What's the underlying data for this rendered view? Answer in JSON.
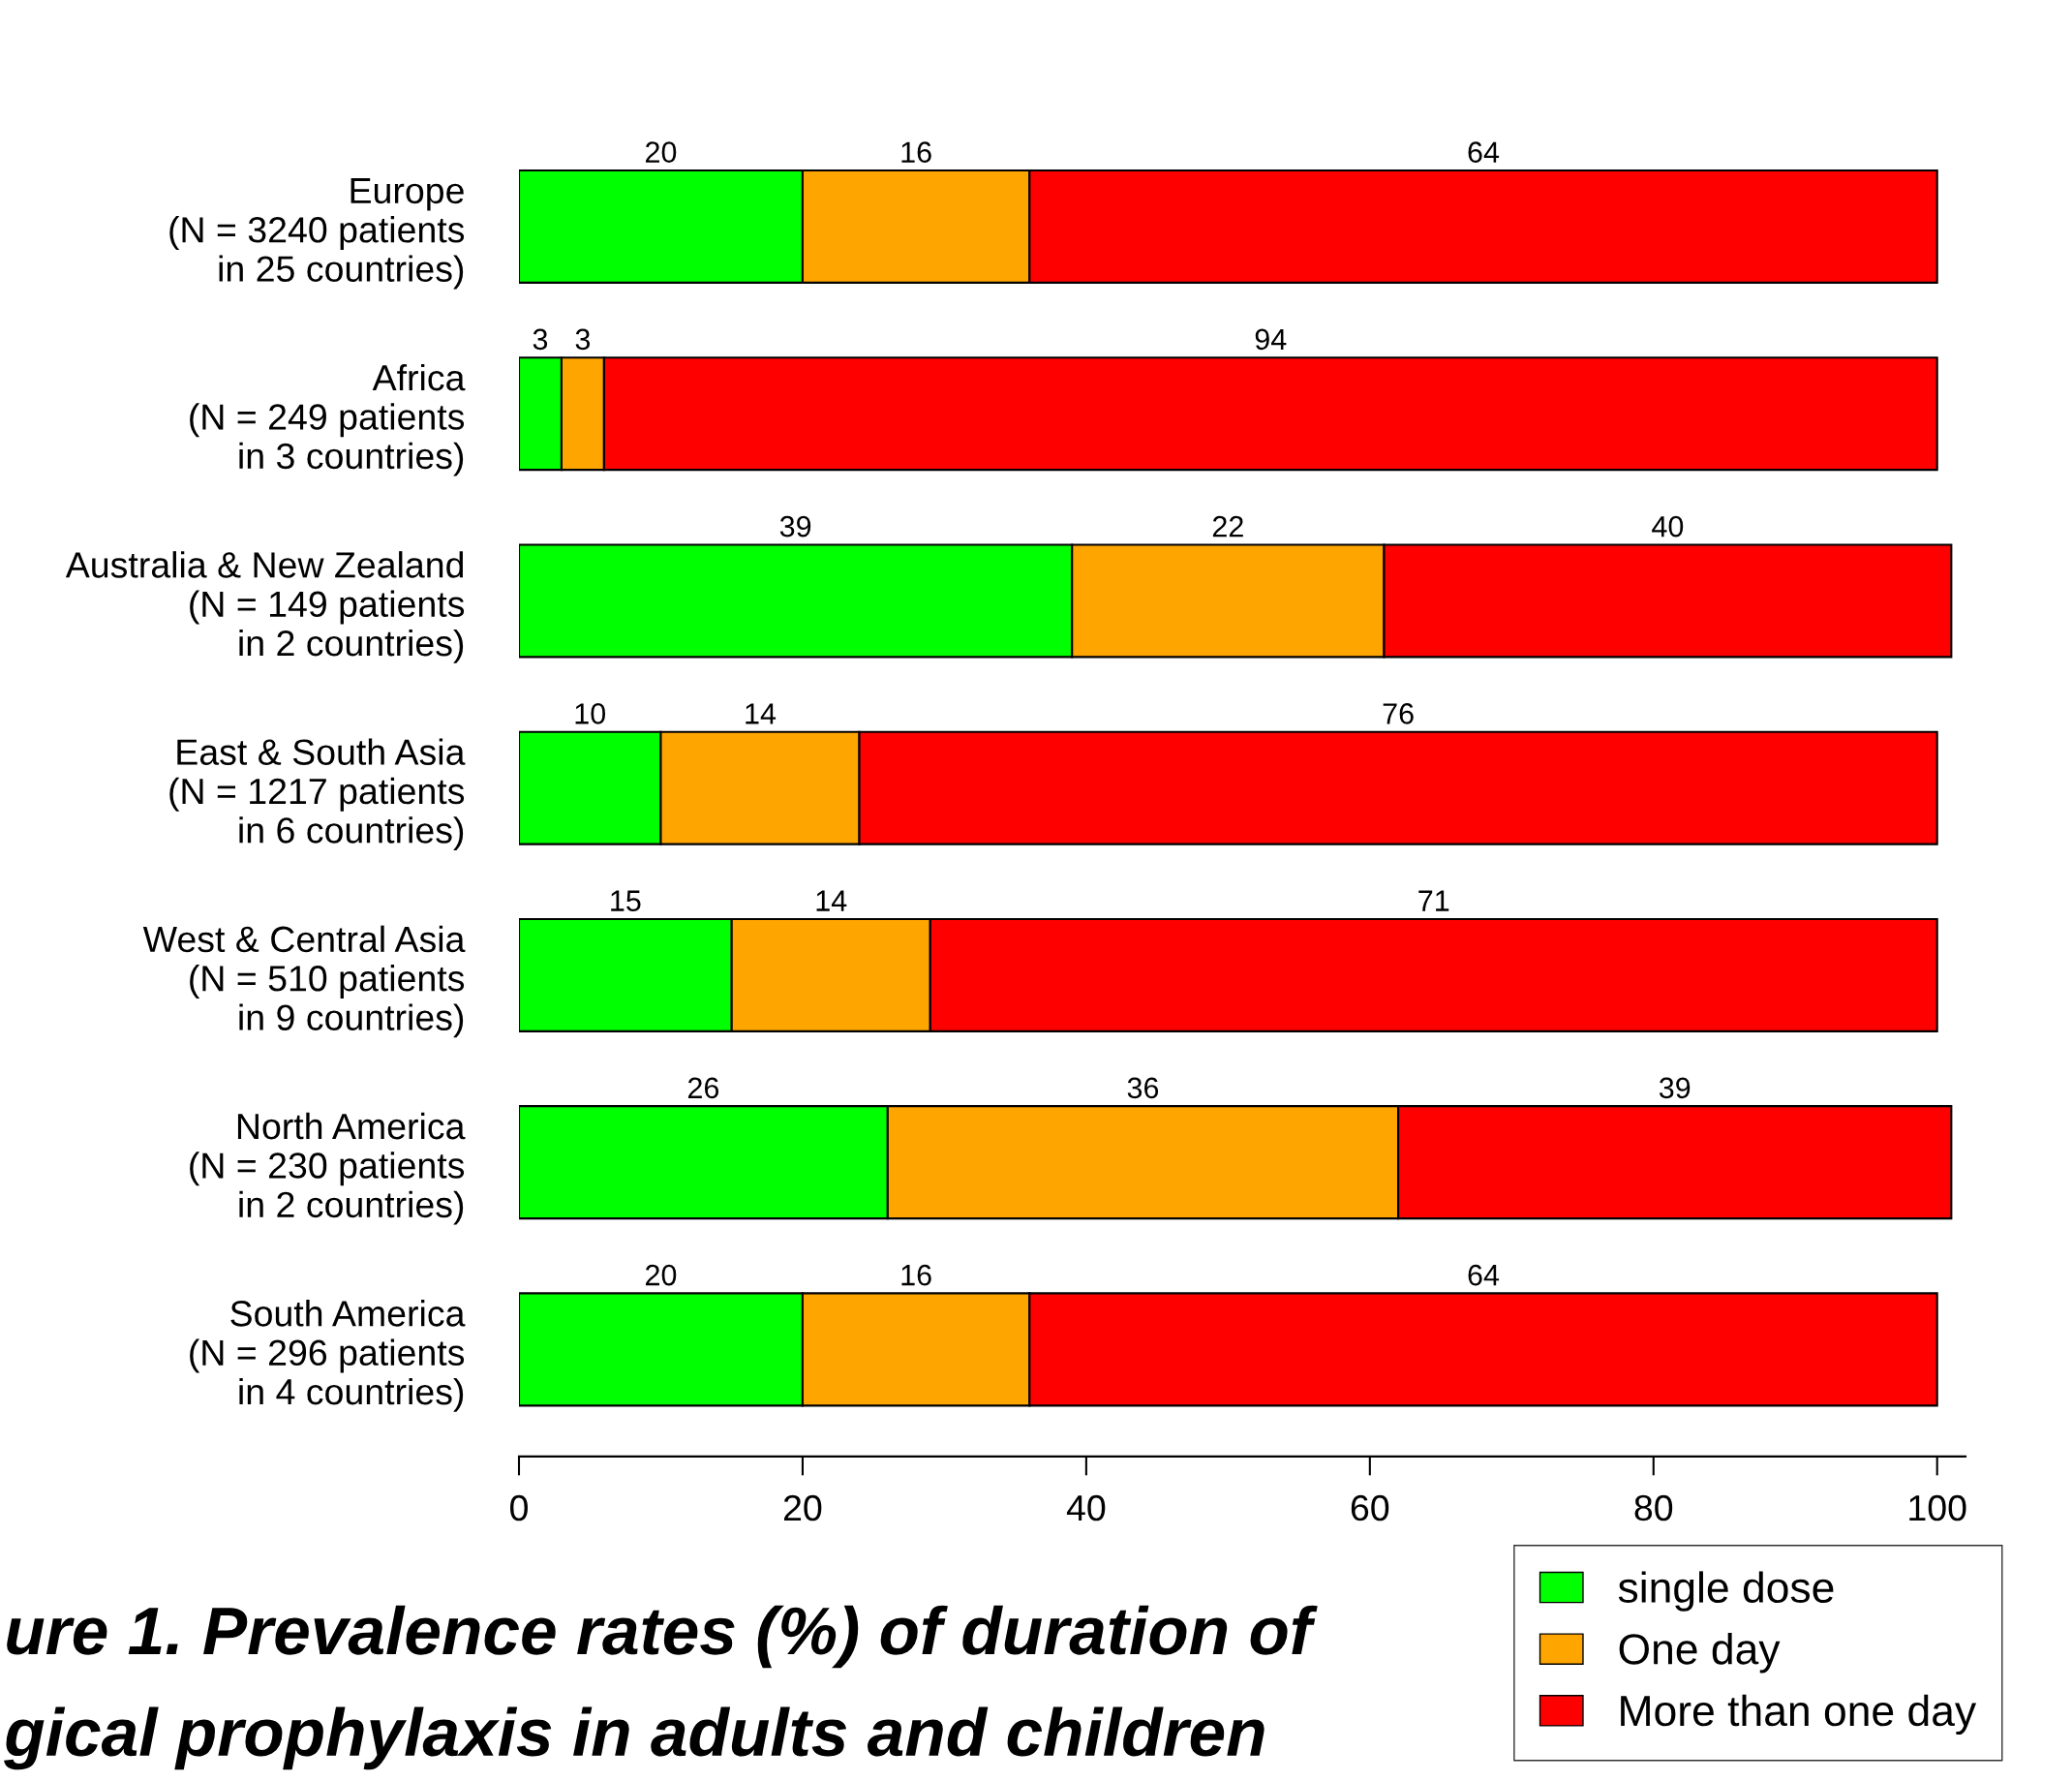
{
  "chart_data": {
    "type": "bar",
    "orientation": "horizontal",
    "stacked": true,
    "categories": [
      "Europe\n(N = 3240 patients\nin 25 countries)",
      "Africa\n(N = 249 patients\nin 3 countries)",
      "Australia & New Zealand\n(N = 149 patients\nin 2 countries)",
      "East & South Asia\n(N = 1217 patients\nin 6 countries)",
      "West & Central Asia\n(N = 510 patients\nin 9 countries)",
      "North America\n(N = 230 patients\nin 2 countries)",
      "South America\n(N = 296 patients\nin 4 countries)"
    ],
    "series": [
      {
        "name": "single dose",
        "color": "#00ff00",
        "values": [
          20,
          3,
          39,
          10,
          15,
          26,
          20
        ]
      },
      {
        "name": "One day",
        "color": "#ffa500",
        "values": [
          16,
          3,
          22,
          14,
          14,
          36,
          16
        ]
      },
      {
        "name": "More than one day",
        "color": "#ff0000",
        "values": [
          64,
          94,
          40,
          76,
          71,
          39,
          64
        ]
      }
    ],
    "xlim": [
      0,
      102
    ],
    "xticks": [
      0,
      20,
      40,
      60,
      80,
      100
    ],
    "grid": false,
    "data_labels": true,
    "legend": "bottom right",
    "annotations": [
      "ure 1. Prevalence rates (%) of duration of",
      "gical prophylaxis in adults and children"
    ]
  }
}
